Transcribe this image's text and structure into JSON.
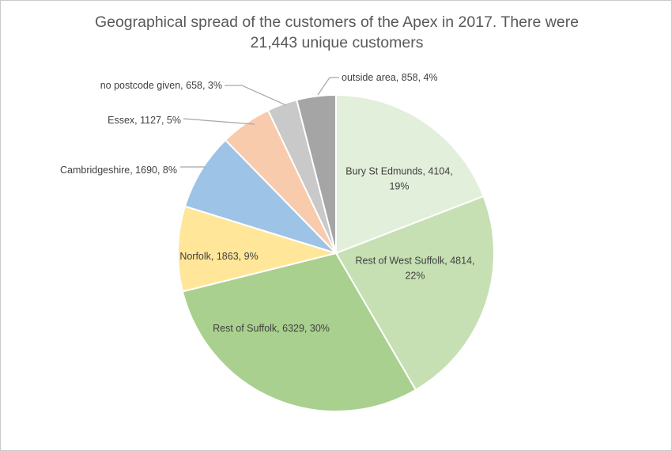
{
  "chart_data": {
    "type": "pie",
    "title_lines": [
      "Geographical spread of the customers of the Apex in 2017. There were",
      "21,443 unique customers"
    ],
    "slices": [
      {
        "label_lines": [
          "Bury St Edmunds, 4104,",
          "19%"
        ],
        "name": "Bury St Edmunds",
        "value": 4104,
        "percent": 19,
        "color": "#e2efda"
      },
      {
        "label_lines": [
          "Rest of West Suffolk, 4814,",
          "22%"
        ],
        "name": "Rest of West Suffolk",
        "value": 4814,
        "percent": 22,
        "color": "#c6e0b4"
      },
      {
        "label_lines": [
          "Rest of Suffolk, 6329, 30%"
        ],
        "name": "Rest of Suffolk",
        "value": 6329,
        "percent": 30,
        "color": "#a9d08e"
      },
      {
        "label_lines": [
          "Norfolk, 1863, 9%"
        ],
        "name": "Norfolk",
        "value": 1863,
        "percent": 9,
        "color": "#ffe699"
      },
      {
        "label_lines": [
          "Cambridgeshire, 1690, 8%"
        ],
        "name": "Cambridgeshire",
        "value": 1690,
        "percent": 8,
        "color": "#9dc3e6"
      },
      {
        "label_lines": [
          "Essex, 1127, 5%"
        ],
        "name": "Essex",
        "value": 1127,
        "percent": 5,
        "color": "#f8cbad"
      },
      {
        "label_lines": [
          "no postcode given, 658, 3%"
        ],
        "name": "no postcode given",
        "value": 658,
        "percent": 3,
        "color": "#c9c9c9"
      },
      {
        "label_lines": [
          "outside area, 858, 4%"
        ],
        "name": "outside area",
        "value": 858,
        "percent": 4,
        "color": "#a5a5a5"
      }
    ],
    "start_angle": "12 o'clock, clockwise",
    "slice_border_color": "#ffffff",
    "leader_line_color": "#a6a6a6"
  }
}
